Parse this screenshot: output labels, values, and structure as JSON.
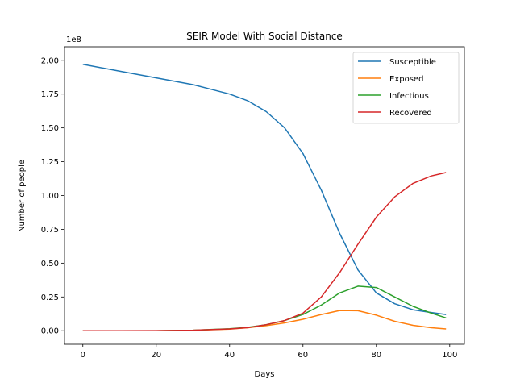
{
  "chart_data": {
    "type": "line",
    "title": "SEIR Model With Social Distance",
    "xlabel": "Days",
    "ylabel": "Number of people",
    "y_multiplier_label": "1e8",
    "xlim": [
      -5,
      104
    ],
    "ylim": [
      -0.1,
      2.1
    ],
    "x_ticks": [
      0,
      20,
      40,
      60,
      80,
      100
    ],
    "x_tick_labels": [
      "0",
      "20",
      "40",
      "60",
      "80",
      "100"
    ],
    "y_ticks": [
      0,
      0.25,
      0.5,
      0.75,
      1.0,
      1.25,
      1.5,
      1.75,
      2.0
    ],
    "y_tick_labels": [
      "0.00",
      "0.25",
      "0.50",
      "0.75",
      "1.00",
      "1.25",
      "1.50",
      "1.75",
      "2.00"
    ],
    "grid": false,
    "legend_position": "top-right",
    "x": [
      0,
      10,
      20,
      30,
      40,
      45,
      50,
      55,
      60,
      65,
      70,
      75,
      80,
      85,
      90,
      95,
      99
    ],
    "series": [
      {
        "name": "Susceptible",
        "color": "#1f77b4",
        "values": [
          1.97,
          1.92,
          1.87,
          1.82,
          1.75,
          1.7,
          1.62,
          1.5,
          1.31,
          1.04,
          0.72,
          0.45,
          0.28,
          0.2,
          0.155,
          0.135,
          0.12
        ]
      },
      {
        "name": "Exposed",
        "color": "#ff7f0e",
        "values": [
          0.0,
          0.0,
          0.0,
          0.003,
          0.012,
          0.022,
          0.038,
          0.058,
          0.085,
          0.12,
          0.15,
          0.148,
          0.115,
          0.07,
          0.04,
          0.022,
          0.013
        ]
      },
      {
        "name": "Infectious",
        "color": "#2ca02c",
        "values": [
          0.0,
          0.0,
          0.0,
          0.004,
          0.015,
          0.025,
          0.045,
          0.075,
          0.12,
          0.19,
          0.28,
          0.33,
          0.32,
          0.25,
          0.18,
          0.13,
          0.095
        ]
      },
      {
        "name": "Recovered",
        "color": "#d62728",
        "values": [
          0.0,
          0.0,
          0.001,
          0.004,
          0.013,
          0.023,
          0.045,
          0.075,
          0.13,
          0.25,
          0.43,
          0.64,
          0.84,
          0.99,
          1.09,
          1.145,
          1.17
        ]
      }
    ]
  }
}
